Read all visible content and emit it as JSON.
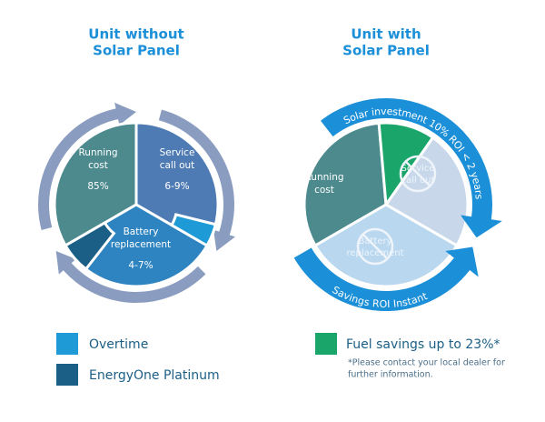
{
  "left": {
    "title": [
      "Unit without",
      "Solar Panel"
    ],
    "running_cost": {
      "label": [
        "Running",
        "cost"
      ],
      "value": "85%"
    },
    "service": {
      "label": [
        "Service",
        "call out"
      ],
      "value": "6-9%"
    },
    "battery": {
      "label": [
        "Battery",
        "replacement"
      ],
      "value": "4-7%"
    }
  },
  "right": {
    "title": [
      "Unit with",
      "Solar Panel"
    ],
    "running_cost": {
      "label": [
        "Running",
        "cost"
      ]
    },
    "service": {
      "label": [
        "Service",
        "call out"
      ]
    },
    "battery": {
      "label": [
        "Battery",
        "replacement"
      ]
    },
    "top_arrow": "Solar investment 10% ROI < 2 years",
    "bottom_arrow": "Savings ROI Instant"
  },
  "legend": [
    "Overtime",
    "EnergyOne Platinum",
    "Fuel savings up to 23%*"
  ],
  "note": [
    "*Please contact your local dealer for",
    "further information."
  ]
}
